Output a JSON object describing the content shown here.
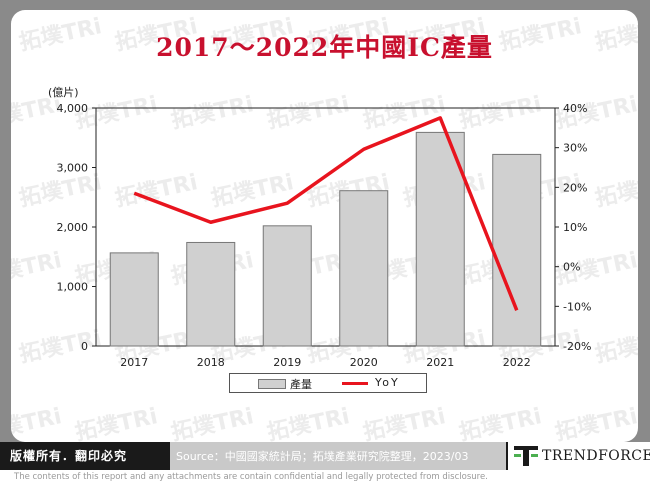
{
  "title": "2017～2022年中國IC產量",
  "chart_data": {
    "type": "bar",
    "categories": [
      "2017",
      "2018",
      "2019",
      "2020",
      "2021",
      "2022"
    ],
    "series": [
      {
        "name": "產量",
        "type": "bar",
        "axis": "left",
        "values": [
          1565,
          1740,
          2020,
          2610,
          3590,
          3220
        ],
        "color": "#d0d0d0"
      },
      {
        "name": "YoY",
        "type": "line",
        "axis": "right",
        "values": [
          18.5,
          11.2,
          16.0,
          29.6,
          37.5,
          -11.0
        ],
        "color": "#e8141e"
      }
    ],
    "ylabel_left": "(億片)",
    "ylim_left": [
      0,
      4000
    ],
    "yticks_left": [
      "0",
      "1,000",
      "2,000",
      "3,000",
      "4,000"
    ],
    "ylim_right": [
      -20,
      40
    ],
    "yticks_right": [
      "-20%",
      "-10%",
      "0%",
      "10%",
      "20%",
      "30%",
      "40%"
    ],
    "legend_position": "bottom"
  },
  "legend": {
    "bar_label": "產量",
    "line_label": "YoY"
  },
  "footer": {
    "rights": "版權所有．翻印必究",
    "source": "Source：中國國家統計局；拓墣產業研究院整理，2023/03",
    "brand": "TRENDFORCE"
  },
  "watermark_text": "拓墣TRi",
  "disclaimer": "The contents of this report and any attachments are contain confidential and legally protected from disclosure."
}
